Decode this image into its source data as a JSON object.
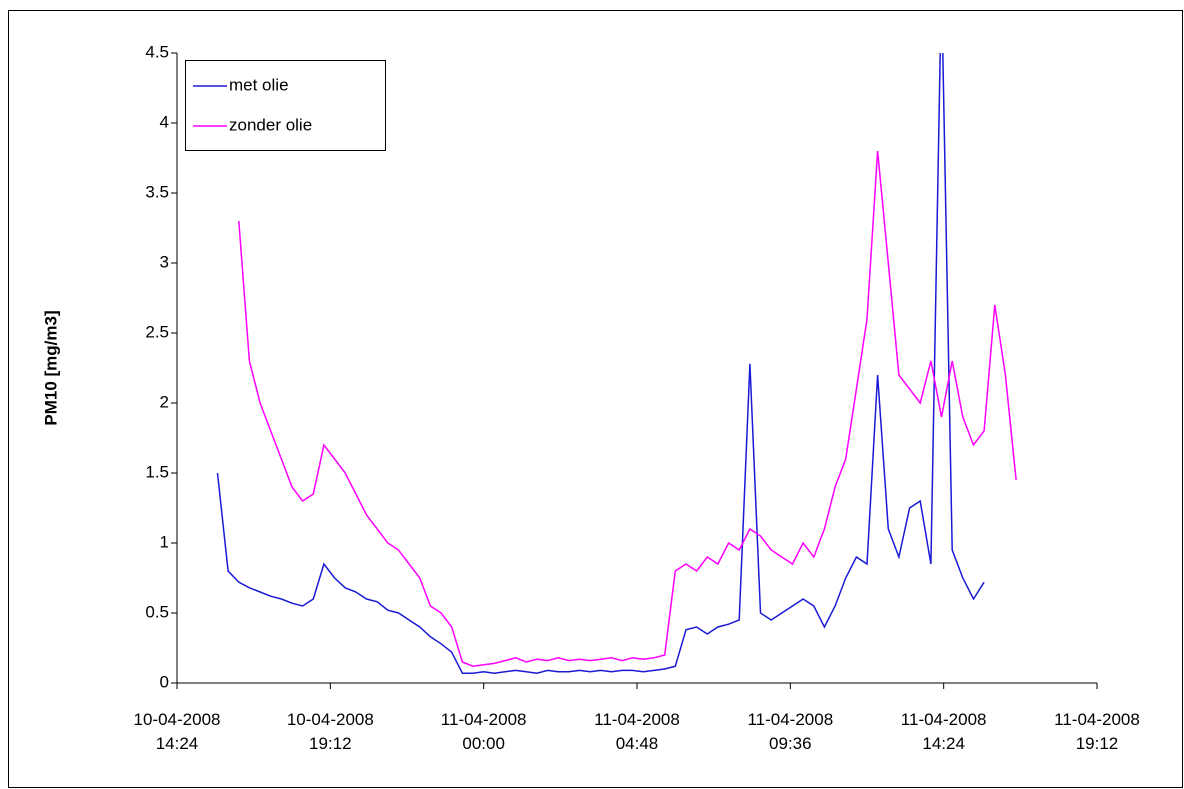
{
  "chart_data": {
    "type": "line",
    "y_label": "PM10 [mg/m3]",
    "x": [
      "10-04-2008 15:40",
      "10-04-2008 16:00",
      "10-04-2008 16:20",
      "10-04-2008 16:40",
      "10-04-2008 17:00",
      "10-04-2008 17:20",
      "10-04-2008 17:40",
      "10-04-2008 18:00",
      "10-04-2008 18:20",
      "10-04-2008 18:40",
      "10-04-2008 19:00",
      "10-04-2008 19:20",
      "10-04-2008 19:40",
      "10-04-2008 20:00",
      "10-04-2008 20:20",
      "10-04-2008 20:40",
      "10-04-2008 21:00",
      "10-04-2008 21:20",
      "10-04-2008 21:40",
      "10-04-2008 22:00",
      "10-04-2008 22:20",
      "10-04-2008 22:40",
      "10-04-2008 23:00",
      "10-04-2008 23:20",
      "10-04-2008 23:40",
      "11-04-2008 00:00",
      "11-04-2008 00:20",
      "11-04-2008 00:40",
      "11-04-2008 01:00",
      "11-04-2008 01:20",
      "11-04-2008 01:40",
      "11-04-2008 02:00",
      "11-04-2008 02:20",
      "11-04-2008 02:40",
      "11-04-2008 03:00",
      "11-04-2008 03:20",
      "11-04-2008 03:40",
      "11-04-2008 04:00",
      "11-04-2008 04:20",
      "11-04-2008 04:40",
      "11-04-2008 05:00",
      "11-04-2008 05:20",
      "11-04-2008 05:40",
      "11-04-2008 06:00",
      "11-04-2008 06:20",
      "11-04-2008 06:40",
      "11-04-2008 07:00",
      "11-04-2008 07:20",
      "11-04-2008 07:40",
      "11-04-2008 08:00",
      "11-04-2008 08:20",
      "11-04-2008 08:40",
      "11-04-2008 09:00",
      "11-04-2008 09:20",
      "11-04-2008 09:40",
      "11-04-2008 10:00",
      "11-04-2008 10:20",
      "11-04-2008 10:40",
      "11-04-2008 11:00",
      "11-04-2008 11:20",
      "11-04-2008 11:40",
      "11-04-2008 12:00",
      "11-04-2008 12:20",
      "11-04-2008 12:40",
      "11-04-2008 13:00",
      "11-04-2008 13:20",
      "11-04-2008 13:40",
      "11-04-2008 14:00",
      "11-04-2008 14:20",
      "11-04-2008 14:40",
      "11-04-2008 15:00",
      "11-04-2008 15:20",
      "11-04-2008 15:40",
      "11-04-2008 16:00",
      "11-04-2008 16:20",
      "11-04-2008 16:40"
    ],
    "series": [
      {
        "name": "met olie",
        "color": "#1a1ad6",
        "values": [
          1.5,
          0.8,
          0.72,
          0.68,
          0.65,
          0.62,
          0.6,
          0.57,
          0.55,
          0.6,
          0.85,
          0.75,
          0.68,
          0.65,
          0.6,
          0.58,
          0.52,
          0.5,
          0.45,
          0.4,
          0.33,
          0.28,
          0.22,
          0.07,
          0.07,
          0.08,
          0.07,
          0.08,
          0.09,
          0.08,
          0.07,
          0.09,
          0.08,
          0.08,
          0.09,
          0.08,
          0.09,
          0.08,
          0.09,
          0.09,
          0.08,
          0.09,
          0.1,
          0.12,
          0.38,
          0.4,
          0.35,
          0.4,
          0.42,
          0.45,
          2.28,
          0.5,
          0.45,
          0.5,
          0.55,
          0.6,
          0.55,
          0.4,
          0.55,
          0.75,
          0.9,
          0.85,
          2.2,
          1.1,
          0.9,
          1.25,
          1.3,
          0.85,
          5.0,
          0.95,
          0.75,
          0.6,
          0.72,
          null,
          null,
          null
        ]
      },
      {
        "name": "zonder olie",
        "color": "#ff00ff",
        "values": [
          null,
          null,
          3.3,
          2.3,
          2.0,
          1.8,
          1.6,
          1.4,
          1.3,
          1.35,
          1.7,
          1.6,
          1.5,
          1.35,
          1.2,
          1.1,
          1.0,
          0.95,
          0.85,
          0.75,
          0.55,
          0.5,
          0.4,
          0.15,
          0.12,
          0.13,
          0.14,
          0.16,
          0.18,
          0.15,
          0.17,
          0.16,
          0.18,
          0.16,
          0.17,
          0.16,
          0.17,
          0.18,
          0.16,
          0.18,
          0.17,
          0.18,
          0.2,
          0.8,
          0.85,
          0.8,
          0.9,
          0.85,
          1.0,
          0.95,
          1.1,
          1.05,
          0.95,
          0.9,
          0.85,
          1.0,
          0.9,
          1.1,
          1.4,
          1.6,
          2.1,
          2.6,
          3.8,
          3.0,
          2.2,
          2.1,
          2.0,
          2.3,
          1.9,
          2.3,
          1.9,
          1.7,
          1.8,
          2.7,
          2.2,
          1.45
        ]
      }
    ],
    "xlim": [
      "10-04-2008 14:24",
      "11-04-2008 19:12"
    ],
    "xticks": [
      "10-04-2008 14:24",
      "10-04-2008 19:12",
      "11-04-2008 00:00",
      "11-04-2008 04:48",
      "11-04-2008 09:36",
      "11-04-2008 14:24",
      "11-04-2008 19:12"
    ],
    "ylim": [
      0,
      4.5
    ],
    "yticks": [
      0,
      0.5,
      1,
      1.5,
      2,
      2.5,
      3,
      3.5,
      4,
      4.5
    ],
    "legend": "upper left"
  }
}
